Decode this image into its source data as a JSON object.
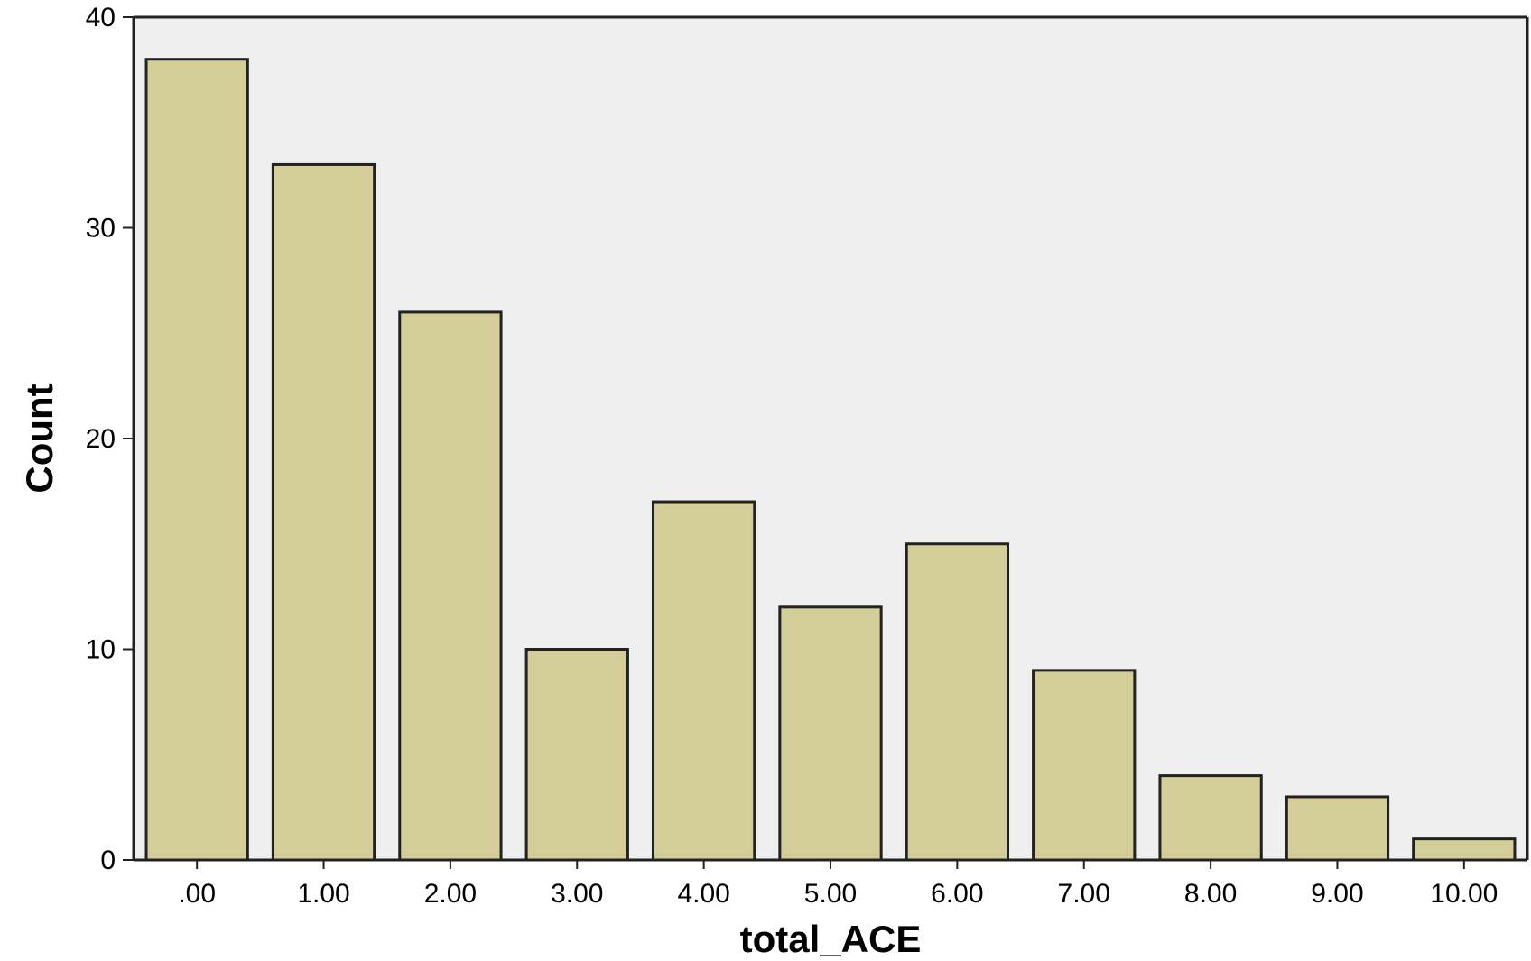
{
  "chart_data": {
    "type": "bar",
    "categories": [
      ".00",
      "1.00",
      "2.00",
      "3.00",
      "4.00",
      "5.00",
      "6.00",
      "7.00",
      "8.00",
      "9.00",
      "10.00"
    ],
    "values": [
      38,
      33,
      26,
      10,
      17,
      12,
      15,
      9,
      4,
      3,
      1
    ],
    "xlabel": "total_ACE",
    "ylabel": "Count",
    "ylim": [
      0,
      40
    ],
    "yticks": [
      0,
      10,
      20,
      30,
      40
    ],
    "grid": false,
    "colors": {
      "bar_fill": "#d3cd98",
      "bar_stroke": "#222222",
      "plot_background": "#efefef",
      "axis": "#222222"
    }
  }
}
